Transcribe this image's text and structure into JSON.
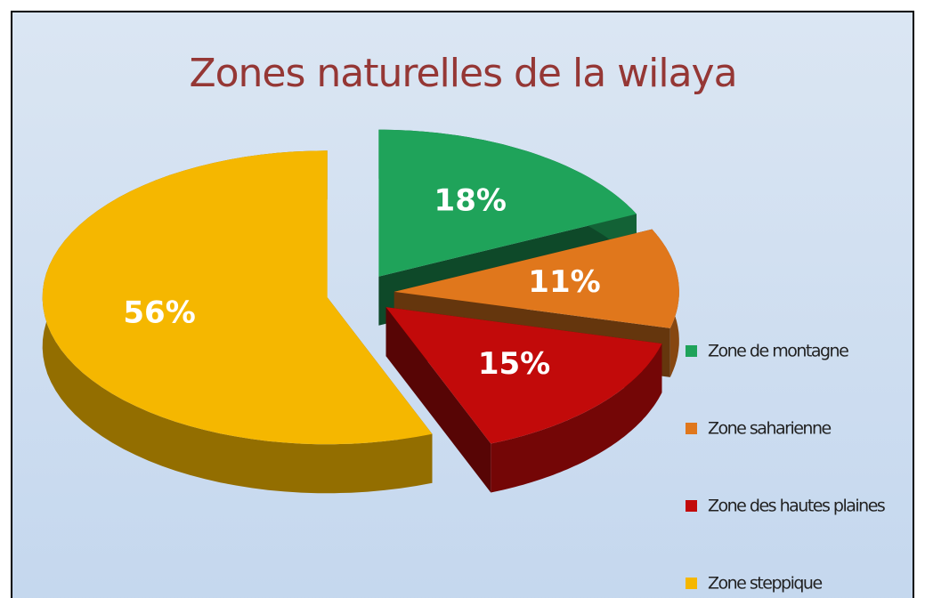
{
  "chart_data": {
    "type": "pie3d",
    "title": "Zones naturelles de la wilaya",
    "categories": [
      "Zone de montagne",
      "Zone saharienne",
      "Zone des hautes plaines",
      "Zone steppique"
    ],
    "values": [
      18,
      11,
      15,
      56
    ],
    "value_labels": [
      "18%",
      "11%",
      "15%",
      "56%"
    ],
    "colors": [
      "#1fa35a",
      "#e0771c",
      "#c20a0a",
      "#f5b700"
    ],
    "legend": "right"
  }
}
